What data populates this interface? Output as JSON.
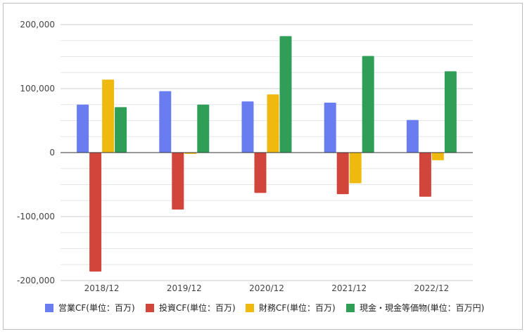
{
  "chart_data": {
    "type": "bar",
    "title": "",
    "xlabel": "",
    "ylabel": "",
    "categories": [
      "2018/12",
      "2019/12",
      "2020/12",
      "2021/12",
      "2022/12"
    ],
    "ylim": [
      -200000,
      200000
    ],
    "y_ticks": [
      200000,
      100000,
      0,
      -100000,
      -200000
    ],
    "y_tick_labels": [
      "200,000",
      "100,000",
      "0",
      "-100,000",
      "-200,000"
    ],
    "grid": true,
    "legend_position": "bottom",
    "series": [
      {
        "name": "営業CF(単位：百万)",
        "color": "#6a7df0",
        "values": [
          75000,
          96000,
          80000,
          78000,
          51000
        ]
      },
      {
        "name": "投資CF(単位：百万)",
        "color": "#d2453a",
        "values": [
          -186000,
          -89000,
          -63000,
          -65000,
          -69000
        ]
      },
      {
        "name": "財務CF(単位：百万)",
        "color": "#f0b90f",
        "values": [
          114000,
          -2000,
          91000,
          -48000,
          -12000
        ]
      },
      {
        "name": "現金・現金等価物(単位：百万円)",
        "color": "#2f9e57",
        "values": [
          71000,
          75000,
          182000,
          151000,
          127000
        ]
      }
    ]
  }
}
